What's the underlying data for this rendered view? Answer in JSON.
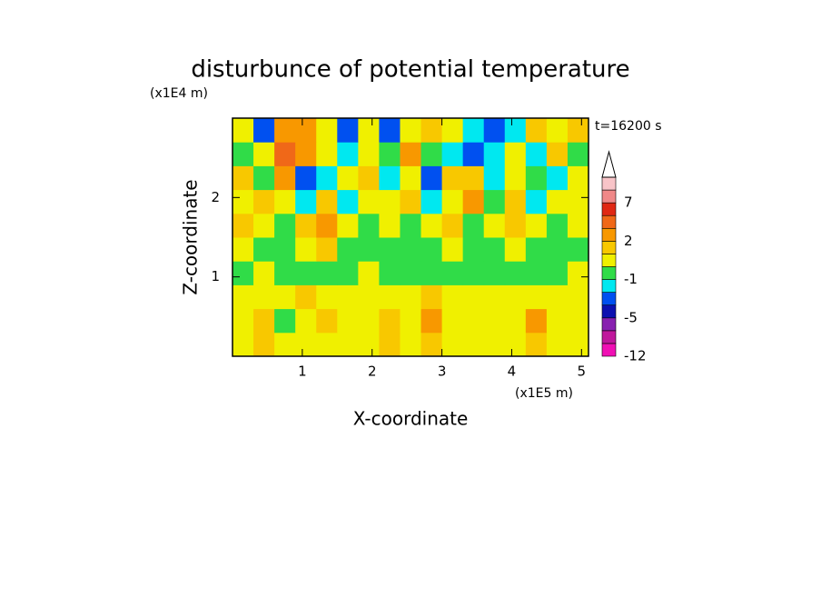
{
  "chart_data": {
    "type": "contour",
    "title": "disturbunce of potential temperature",
    "x_label": "X-coordinate",
    "y_label": "Z-coordinate",
    "x_unit": "(x1E5 m)",
    "y_unit": "(x1E4 m)",
    "annotation": "t=16200 s",
    "xlim": [
      0,
      5.1
    ],
    "ylim": [
      0,
      3
    ],
    "xticks": [
      1,
      2,
      3,
      4,
      5
    ],
    "yticks": [
      1,
      2
    ],
    "x": [
      0.15,
      0.45,
      0.75,
      1.05,
      1.35,
      1.65,
      1.95,
      2.25,
      2.55,
      2.85,
      3.15,
      3.45,
      3.75,
      4.05,
      4.35,
      4.65,
      4.95
    ],
    "y": [
      0.15,
      0.45,
      0.75,
      1.05,
      1.35,
      1.65,
      1.95,
      2.25,
      2.55,
      2.85
    ],
    "z": [
      [
        0.5,
        1.5,
        0.5,
        0.5,
        0.5,
        0.5,
        0.5,
        1.5,
        0.5,
        1.5,
        0.5,
        0.5,
        0.5,
        0.5,
        1.5,
        0.5,
        0.5
      ],
      [
        0.5,
        1.5,
        -0.5,
        0.5,
        1.5,
        0.5,
        0.5,
        1.5,
        0.5,
        2.5,
        0.5,
        0.5,
        0.5,
        0.5,
        2.5,
        0.5,
        0.5
      ],
      [
        0.5,
        0.5,
        0.5,
        1.5,
        0.5,
        0.5,
        0.5,
        0.5,
        0.5,
        1.5,
        0.5,
        0.5,
        0.5,
        0.5,
        0.5,
        0.5,
        0.5
      ],
      [
        -0.5,
        0.5,
        -0.5,
        -0.5,
        -0.5,
        -0.5,
        0.5,
        -0.5,
        -0.5,
        -0.5,
        -0.5,
        -0.5,
        -0.5,
        -0.5,
        -0.5,
        -0.5,
        0.5
      ],
      [
        0.5,
        -0.5,
        -0.5,
        0.5,
        1.5,
        -0.5,
        -0.5,
        -0.5,
        -0.5,
        -0.5,
        0.5,
        -0.5,
        -0.5,
        0.5,
        -0.5,
        -0.5,
        -0.5
      ],
      [
        1.5,
        0.5,
        -0.5,
        1.5,
        2.5,
        0.5,
        -0.5,
        0.5,
        -0.5,
        0.5,
        1.5,
        -0.5,
        0.5,
        1.5,
        0.5,
        -0.5,
        0.5
      ],
      [
        0.5,
        1.5,
        0.5,
        -2,
        1.5,
        -2,
        0.5,
        0.5,
        1.5,
        -2,
        0.5,
        2.5,
        -0.5,
        1.5,
        -2,
        0.5,
        0.5
      ],
      [
        1.5,
        -0.5,
        2.5,
        -4,
        -2,
        0.5,
        1.5,
        -2,
        0.5,
        -4,
        1.5,
        1.5,
        -2,
        0.5,
        -0.5,
        -2,
        0.5
      ],
      [
        -0.5,
        0.5,
        3.5,
        2.5,
        0.5,
        -2,
        0.5,
        -0.5,
        2.5,
        -0.5,
        -2,
        -4,
        -2,
        0.5,
        -2,
        1.5,
        -0.5
      ],
      [
        0.5,
        -4,
        2.5,
        2.5,
        0.5,
        -4,
        0.5,
        -4,
        0.5,
        1.5,
        0.5,
        -2,
        -4,
        -2,
        1.5,
        0.5,
        1.5
      ]
    ],
    "colorbar": {
      "levels": [
        -12,
        -9,
        -7,
        -5,
        -4,
        -3,
        -1,
        0,
        1,
        2,
        3,
        5,
        7,
        9,
        11
      ],
      "colors": [
        "#f010b4",
        "#c0189c",
        "#8820b0",
        "#0c10b0",
        "#0050f0",
        "#00e8f0",
        "#30dc48",
        "#f0f000",
        "#f8c800",
        "#f89800",
        "#f06818",
        "#e02814",
        "#f08888",
        "#f8c4c8"
      ],
      "extend_color": "#ffffff",
      "ticks": [
        -12,
        -5,
        -1,
        2,
        7
      ]
    }
  }
}
